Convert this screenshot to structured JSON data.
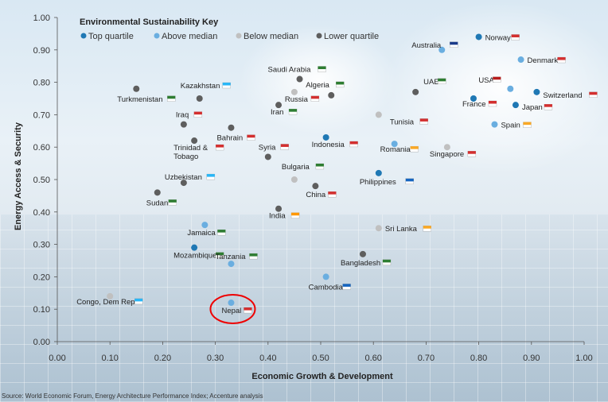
{
  "source": "Source: World Economic Forum, Energy Architecture Performance Index; Accenture analysis",
  "chart_data": {
    "type": "scatter",
    "xlabel": "Economic Growth & Development",
    "ylabel": "Energy Access & Security",
    "xlim": [
      0,
      1
    ],
    "ylim": [
      0,
      1
    ],
    "x_ticks": [
      "0.00",
      "0.10",
      "0.20",
      "0.30",
      "0.40",
      "0.50",
      "0.60",
      "0.70",
      "0.80",
      "0.90",
      "1.00"
    ],
    "y_ticks": [
      "0.00",
      "0.10",
      "0.20",
      "0.30",
      "0.40",
      "0.50",
      "0.60",
      "0.70",
      "0.80",
      "0.90",
      "1.00"
    ],
    "legend": {
      "title": "Environmental Sustainability Key",
      "placement": "top-left",
      "items": [
        {
          "label": "Top quartile",
          "color": "#1f78b4"
        },
        {
          "label": "Above median",
          "color": "#6aaee0"
        },
        {
          "label": "Below median",
          "color": "#c0c0c0"
        },
        {
          "label": "Lower quartile",
          "color": "#5e5e5e"
        }
      ]
    },
    "points": [
      {
        "name": "Norway",
        "x": 0.8,
        "y": 0.94,
        "group": "Top quartile",
        "flag_color": "#d32f2f"
      },
      {
        "name": "Australia",
        "x": 0.73,
        "y": 0.9,
        "group": "Above median",
        "flag_color": "#1a3b8a"
      },
      {
        "name": "Denmark",
        "x": 0.88,
        "y": 0.87,
        "group": "Above median",
        "flag_color": "#d32f2f"
      },
      {
        "name": "USA",
        "x": 0.86,
        "y": 0.78,
        "group": "Above median",
        "flag_color": "#b71c1c"
      },
      {
        "name": "Switzerland",
        "x": 0.91,
        "y": 0.77,
        "group": "Top quartile",
        "flag_color": "#d32f2f"
      },
      {
        "name": "UAE",
        "x": 0.68,
        "y": 0.77,
        "group": "Lower quartile",
        "flag_color": "#2e7d32"
      },
      {
        "name": "France",
        "x": 0.79,
        "y": 0.75,
        "group": "Top quartile",
        "flag_color": "#d32f2f"
      },
      {
        "name": "Japan",
        "x": 0.87,
        "y": 0.73,
        "group": "Top quartile",
        "flag_color": "#d32f2f"
      },
      {
        "name": "Tunisia",
        "x": 0.61,
        "y": 0.7,
        "group": "Below median",
        "flag_color": "#d32f2f"
      },
      {
        "name": "Spain",
        "x": 0.83,
        "y": 0.67,
        "group": "Above median",
        "flag_color": "#f9a825"
      },
      {
        "name": "Singapore",
        "x": 0.74,
        "y": 0.6,
        "group": "Below median",
        "flag_color": "#d32f2f"
      },
      {
        "name": "Romania",
        "x": 0.64,
        "y": 0.61,
        "group": "Above median",
        "flag_color": "#f9a825"
      },
      {
        "name": "Philippines",
        "x": 0.61,
        "y": 0.52,
        "group": "Top quartile",
        "flag_color": "#1565c0"
      },
      {
        "name": "Saudi Arabia",
        "x": 0.46,
        "y": 0.81,
        "group": "Lower quartile",
        "flag_color": "#2e7d32"
      },
      {
        "name": "Algeria",
        "x": 0.52,
        "y": 0.76,
        "group": "Lower quartile",
        "flag_color": "#2e7d32"
      },
      {
        "name": "Russia",
        "x": 0.45,
        "y": 0.77,
        "group": "Below median",
        "flag_color": "#d32f2f"
      },
      {
        "name": "Iran",
        "x": 0.42,
        "y": 0.73,
        "group": "Lower quartile",
        "flag_color": "#2e7d32"
      },
      {
        "name": "Indonesia",
        "x": 0.51,
        "y": 0.63,
        "group": "Top quartile",
        "flag_color": "#d32f2f"
      },
      {
        "name": "Syria",
        "x": 0.4,
        "y": 0.57,
        "group": "Lower quartile",
        "flag_color": "#d32f2f"
      },
      {
        "name": "Bulgaria",
        "x": 0.45,
        "y": 0.5,
        "group": "Below median",
        "flag_color": "#2e7d32"
      },
      {
        "name": "China",
        "x": 0.49,
        "y": 0.48,
        "group": "Lower quartile",
        "flag_color": "#d32f2f"
      },
      {
        "name": "India",
        "x": 0.42,
        "y": 0.41,
        "group": "Lower quartile",
        "flag_color": "#ff9800"
      },
      {
        "name": "Turkmenistan",
        "x": 0.15,
        "y": 0.78,
        "group": "Lower quartile",
        "flag_color": "#2e7d32"
      },
      {
        "name": "Kazakhstan",
        "x": 0.27,
        "y": 0.75,
        "group": "Lower quartile",
        "flag_color": "#29b6f6"
      },
      {
        "name": "Iraq",
        "x": 0.24,
        "y": 0.67,
        "group": "Lower quartile",
        "flag_color": "#d32f2f"
      },
      {
        "name": "Bahrain",
        "x": 0.33,
        "y": 0.66,
        "group": "Lower quartile",
        "flag_color": "#d32f2f"
      },
      {
        "name": "Trinidad & Tobago",
        "x": 0.26,
        "y": 0.62,
        "group": "Lower quartile",
        "flag_color": "#d32f2f"
      },
      {
        "name": "Uzbekistan",
        "x": 0.24,
        "y": 0.49,
        "group": "Lower quartile",
        "flag_color": "#29b6f6"
      },
      {
        "name": "Sudan",
        "x": 0.19,
        "y": 0.46,
        "group": "Lower quartile",
        "flag_color": "#2e7d32"
      },
      {
        "name": "Jamaica",
        "x": 0.28,
        "y": 0.36,
        "group": "Above median",
        "flag_color": "#2e7d32"
      },
      {
        "name": "Mozambique",
        "x": 0.26,
        "y": 0.29,
        "group": "Top quartile",
        "flag_color": "#2e7d32"
      },
      {
        "name": "Sri Lanka",
        "x": 0.61,
        "y": 0.35,
        "group": "Below median",
        "flag_color": "#f9a825"
      },
      {
        "name": "Bangladesh",
        "x": 0.58,
        "y": 0.27,
        "group": "Lower quartile",
        "flag_color": "#2e7d32"
      },
      {
        "name": "Cambodia",
        "x": 0.51,
        "y": 0.2,
        "group": "Above median",
        "flag_color": "#1565c0"
      },
      {
        "name": "Tanzania",
        "x": 0.33,
        "y": 0.24,
        "group": "Above median",
        "flag_color": "#2e7d32"
      },
      {
        "name": "Congo, Dem Rep",
        "x": 0.1,
        "y": 0.14,
        "group": "Below median",
        "flag_color": "#29b6f6"
      },
      {
        "name": "Nepal",
        "x": 0.33,
        "y": 0.12,
        "group": "Above median",
        "flag_color": "#d32f2f",
        "highlight": true
      }
    ]
  }
}
